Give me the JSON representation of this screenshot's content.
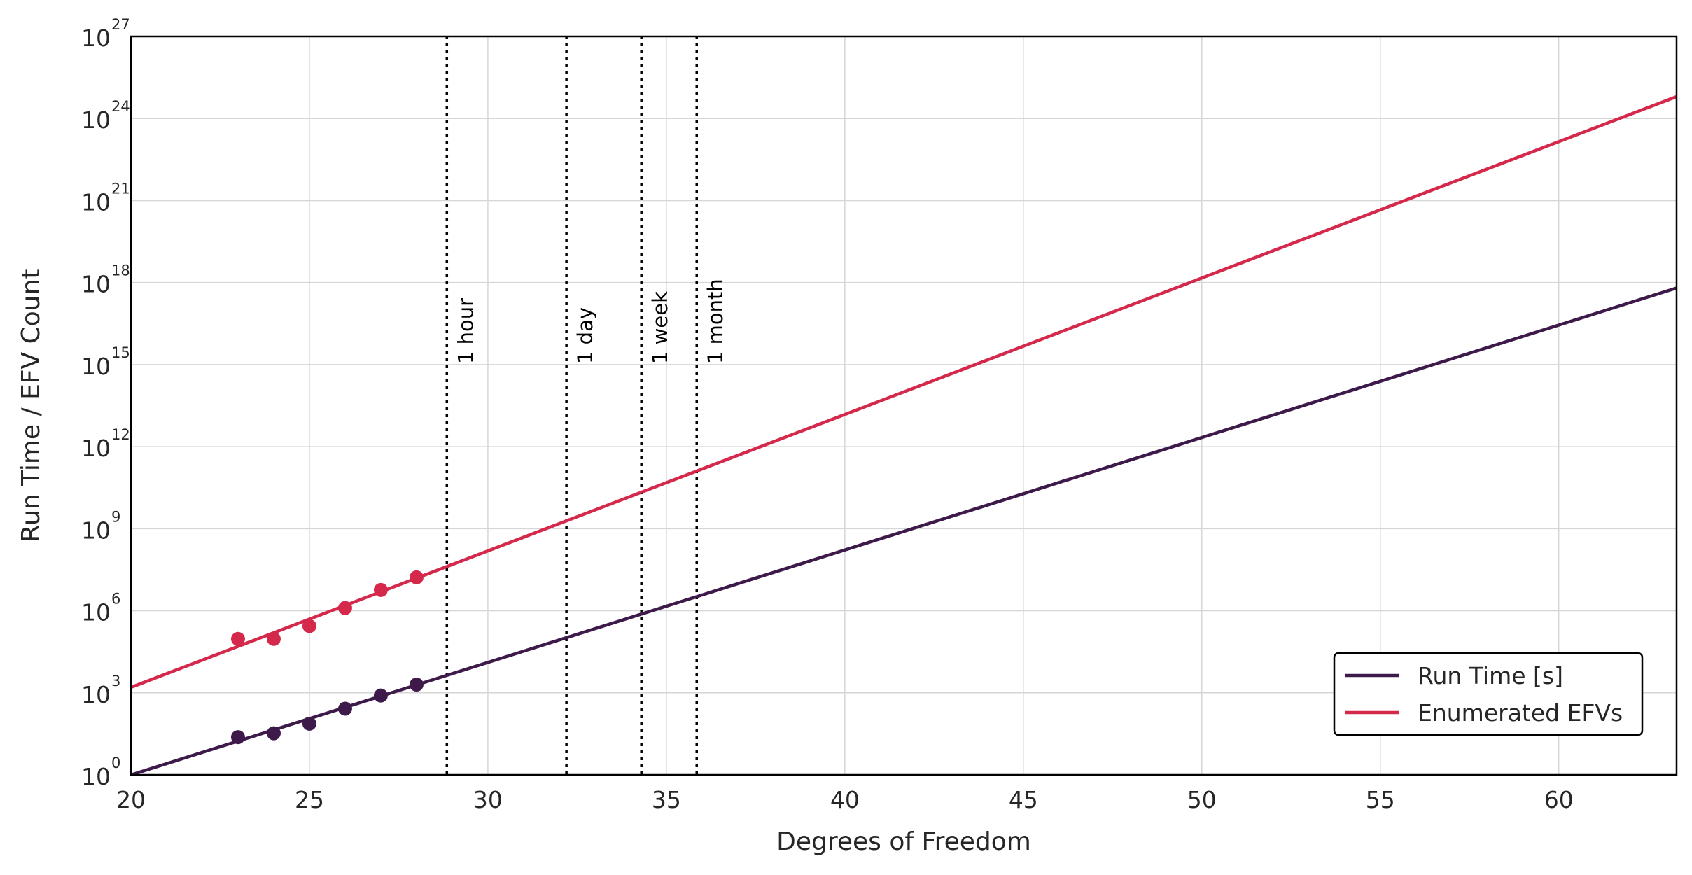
{
  "chart_data": {
    "type": "line",
    "title": "",
    "xlabel": "Degrees of Freedom",
    "ylabel": "Run Time / EFV Count",
    "xlim": [
      20,
      63.3
    ],
    "ylim": [
      0,
      27
    ],
    "yscale": "log",
    "grid": true,
    "legend_position": "bottom-right",
    "x_ticks": [
      20,
      25,
      30,
      35,
      40,
      45,
      50,
      55,
      60
    ],
    "y_ticks": [
      {
        "base": "10",
        "exp": "0",
        "value": 0
      },
      {
        "base": "10",
        "exp": "3",
        "value": 3
      },
      {
        "base": "10",
        "exp": "6",
        "value": 6
      },
      {
        "base": "10",
        "exp": "9",
        "value": 9
      },
      {
        "base": "10",
        "exp": "12",
        "value": 12
      },
      {
        "base": "10",
        "exp": "15",
        "value": 15
      },
      {
        "base": "10",
        "exp": "18",
        "value": 18
      },
      {
        "base": "10",
        "exp": "21",
        "value": 21
      },
      {
        "base": "10",
        "exp": "24",
        "value": 24
      },
      {
        "base": "10",
        "exp": "27",
        "value": 27
      }
    ],
    "series": [
      {
        "name": "Run Time [s]",
        "color": "#3d1a4a",
        "fit_line": {
          "x": [
            20,
            63.3
          ],
          "log10_y": [
            0.0,
            17.8
          ]
        },
        "points": {
          "x": [
            23,
            24,
            25,
            26,
            27,
            28
          ],
          "log10_y": [
            1.38,
            1.52,
            1.87,
            2.42,
            2.9,
            3.3
          ]
        }
      },
      {
        "name": "Enumerated EFVs",
        "color": "#d5294b",
        "fit_line": {
          "x": [
            20,
            63.3
          ],
          "log10_y": [
            3.2,
            24.8
          ]
        },
        "points": {
          "x": [
            23,
            24,
            25,
            26,
            27,
            28
          ],
          "log10_y": [
            4.97,
            4.97,
            5.44,
            6.1,
            6.76,
            7.22
          ]
        }
      }
    ],
    "vertical_lines": [
      {
        "x": 28.85,
        "label": "1 hour"
      },
      {
        "x": 32.2,
        "label": "1 day"
      },
      {
        "x": 34.3,
        "label": "1 week"
      },
      {
        "x": 35.85,
        "label": "1 month"
      }
    ]
  }
}
